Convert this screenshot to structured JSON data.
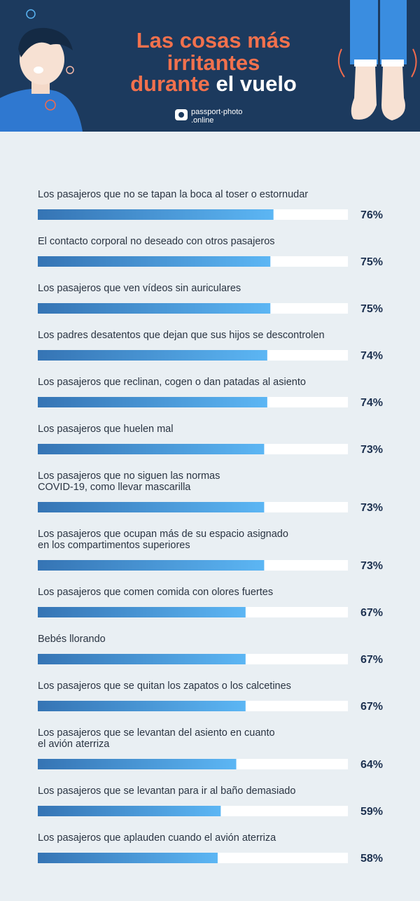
{
  "logo": [
    "passport-photo",
    ".online"
  ],
  "chart_data": {
    "type": "bar",
    "orientation": "horizontal",
    "title": [
      "Las cosas más",
      "irritantes",
      "durante",
      "el vuelo"
    ],
    "categories": [
      "Los pasajeros que no se tapan la boca al toser o estornudar",
      "El contacto corporal no deseado con otros pasajeros",
      "Los pasajeros que ven vídeos sin auriculares",
      "Los padres desatentos que dejan que sus hijos se descontrolen",
      "Los pasajeros que reclinan, cogen o dan patadas al asiento",
      "Los pasajeros que huelen mal",
      "Los pasajeros que no siguen las normas\nCOVID-19, como llevar mascarilla",
      "Los pasajeros que ocupan más de su espacio asignado\nen los compartimentos superiores",
      "Los pasajeros que comen comida con olores fuertes",
      "Bebés llorando",
      "Los pasajeros que se quitan los zapatos o los calcetines",
      "Los pasajeros que se levantan del asiento en cuanto\nel avión aterriza",
      "Los pasajeros que se levantan para ir al baño demasiado",
      "Los pasajeros que aplauden cuando el avión aterriza"
    ],
    "values": [
      76,
      75,
      75,
      74,
      74,
      73,
      73,
      73,
      67,
      67,
      67,
      64,
      59,
      58
    ],
    "value_labels": [
      "76%",
      "75%",
      "75%",
      "74%",
      "74%",
      "73%",
      "73%",
      "73%",
      "67%",
      "67%",
      "67%",
      "64%",
      "59%",
      "58%"
    ],
    "xlim": [
      0,
      100
    ],
    "colors": [
      "#3574b4",
      "#5cb6f4"
    ],
    "track_color": "#ffffff"
  }
}
